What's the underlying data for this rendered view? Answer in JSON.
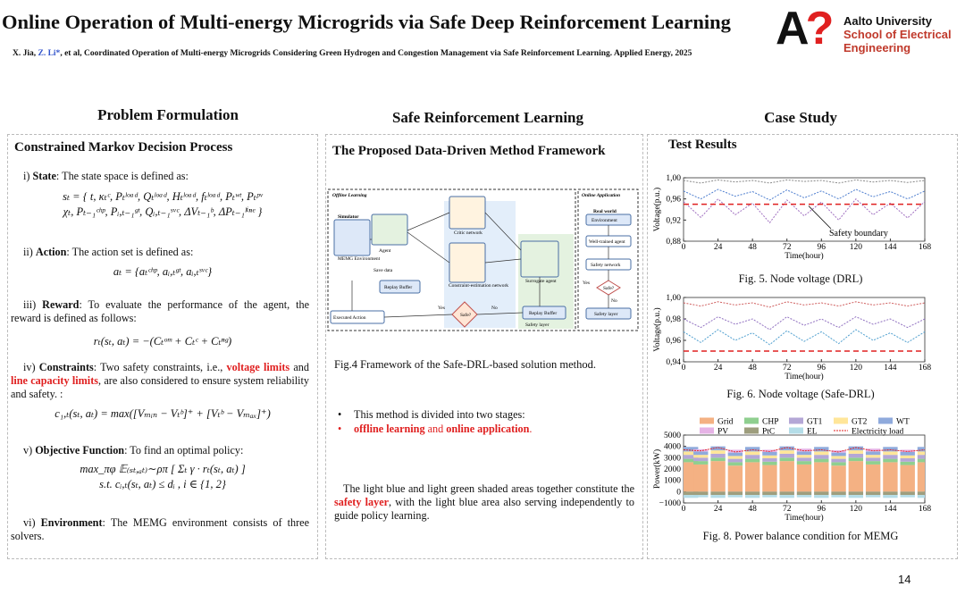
{
  "header": {
    "title": "Online Operation of Multi-energy Microgrids via Safe Deep Reinforcement Learning",
    "authors": [
      {
        "text": "X. Jia, "
      },
      {
        "text": "Z. Li*",
        "color": "#3355cc"
      },
      {
        "text": ", et al, Coordinated Operation of Multi-energy Microgrids Considering Green Hydrogen and Congestion Management via Safe Reinforcement Learning. Applied Energy, 2025"
      }
    ],
    "logo": [
      "A",
      "?"
    ],
    "university": [
      "Aalto University",
      "School of Electrical",
      "Engineering"
    ]
  },
  "left": {
    "heading": "Problem Formulation",
    "subheading": "Constrained Markov Decision Process",
    "items": [
      {
        "segments": [
          {
            "text": "i) "
          },
          {
            "text": "State",
            "bold": true
          },
          {
            "text": ": The state space is defined as:"
          }
        ],
        "formula": [
          "sₜ = { t, κₜᶜ, Pₜˡᵒᵃᵈ, Qₜˡᵒᵃᵈ, Hₜˡᵒᵃᵈ, fₜˡᵒᵃᵈ, Pₜʷᵗ, Pₜᵖᵛ",
          "χₜ, Pₜ₋₁ᶜʰᵖ, Pᵢ,ₜ₋₁ᵍᵗ, Qᵢ,ₜ₋₁ˢᵛᶜ, ΔVₜ₋₁ᵇ, ΔPₜ₋₁ˡⁱⁿᵉ }"
        ]
      },
      {
        "segments": [
          {
            "text": "ii) "
          },
          {
            "text": "Action",
            "bold": true
          },
          {
            "text": ": The action set is defined as:"
          }
        ],
        "formula": [
          "aₜ = {aₜᶜʰᵖ, aᵢ,ₜᵍᵗ, aᵢ,ₜˢᵛᶜ}"
        ]
      },
      {
        "segments": [
          {
            "text": "iii) "
          },
          {
            "text": "Reward",
            "bold": true
          },
          {
            "text": ": To evaluate the performance of the agent, the reward is defined as follows:"
          }
        ],
        "formula": [
          "rₜ(sₜ, aₜ) = −(Cₜᵒᵐ + Cₜᶜ + Cₜⁿᵍ)"
        ]
      },
      {
        "segments": [
          {
            "text": "iv) "
          },
          {
            "text": "Constraints",
            "bold": true
          },
          {
            "text": ": Two safety constraints, i.e., "
          },
          {
            "text": "voltage limits",
            "bold": true,
            "color": "#e02020"
          },
          {
            "text": " and "
          },
          {
            "text": "line capacity limits",
            "bold": true,
            "color": "#e02020"
          },
          {
            "text": ", are also considered to ensure system reliability and safety. :"
          }
        ],
        "formula": [
          "c₁,ₜ(sₜ, aₜ) = max([Vₘᵢₙ − Vₜᵇ]⁺ + [Vₜᵇ − Vₘₐₓ]⁺)"
        ]
      },
      {
        "segments": [
          {
            "text": "v) "
          },
          {
            "text": "Objective Function",
            "bold": true
          },
          {
            "text": ": To find an optimal policy:"
          }
        ],
        "formula": [
          "max_πφ  𝔼₍ₛₜ,ₐₜ₎∼ρπ [ Σₜ γ · rₜ(sₜ, aₜ) ]",
          "s.t.  cᵢ,ₜ(sₜ, aₜ) ≤ dᵢ ,   i ∈ {1, 2}"
        ]
      },
      {
        "segments": [
          {
            "text": "vi) "
          },
          {
            "text": "Environment",
            "bold": true
          },
          {
            "text": ": The MEMG environment consists of three solvers."
          }
        ]
      }
    ]
  },
  "middle": {
    "heading": "Safe Reinforcement Learning",
    "subheading": "The Proposed Data-Driven Method Framework",
    "diagram": {
      "labels": [
        "Offline Learning",
        "Online Application",
        "Simulator",
        "MEMG Environment",
        "Agent",
        "Critic network",
        "Constraint-estimation network",
        "Surrogate agent",
        "Replay Buffer",
        "Save data",
        "Executed Action",
        "Safe?",
        "Yes",
        "No",
        "Replay Buffer",
        "Safety layer",
        "Real world",
        "Environment",
        "Well-trained agent",
        "Safety network",
        "Safe?",
        "Yes",
        "No",
        "Safety layer"
      ]
    },
    "caption": "Fig.4 Framework of the Safe-DRL-based solution method.",
    "bullets": [
      [
        {
          "text": "This method is divided into two stages:"
        }
      ],
      [
        {
          "text": "offline learning",
          "bold": true,
          "color": "#e02020"
        },
        {
          "text": " and ",
          "color": "#e02020"
        },
        {
          "text": "online application",
          "bold": true,
          "color": "#e02020"
        },
        {
          "text": ".",
          "color": "#e02020"
        }
      ]
    ],
    "paragraph": [
      {
        "text": "The light blue and light green shaded areas together constitute the "
      },
      {
        "text": "safety layer",
        "bold": true,
        "color": "#e02020"
      },
      {
        "text": ", with the light blue area also serving independently to guide policy learning."
      }
    ]
  },
  "right": {
    "heading": "Case Study",
    "subheading": "Test Results",
    "captions": [
      "Fig. 5. Node voltage (DRL)",
      "Fig. 6. Node voltage (Safe-DRL)",
      "Fig. 8.  Power balance condition for MEMG"
    ]
  },
  "chart_data": [
    {
      "type": "line",
      "xlabel": "Time(hour)",
      "ylabel": "Voltage(p.u.)",
      "annotation": "Safety boundary",
      "x": [
        0,
        12,
        24,
        36,
        48,
        60,
        72,
        84,
        96,
        108,
        120,
        132,
        144,
        156,
        168
      ],
      "series": [
        {
          "color": "#8a8a8a",
          "values": [
            0.995,
            0.99,
            0.996,
            0.992,
            0.995,
            0.99,
            0.996,
            0.993,
            0.995,
            0.99,
            0.996,
            0.992,
            0.995,
            0.991,
            0.995
          ]
        },
        {
          "color": "#4f7fcf",
          "values": [
            0.975,
            0.96,
            0.978,
            0.965,
            0.974,
            0.958,
            0.977,
            0.962,
            0.975,
            0.96,
            0.978,
            0.964,
            0.974,
            0.96,
            0.975
          ]
        },
        {
          "color": "#a070c0",
          "values": [
            0.955,
            0.925,
            0.96,
            0.93,
            0.952,
            0.915,
            0.958,
            0.928,
            0.954,
            0.92,
            0.96,
            0.93,
            0.952,
            0.924,
            0.955
          ]
        }
      ],
      "boundary": 0.95,
      "boundary_color": "#e02020",
      "xlim": [
        0,
        168
      ],
      "xticks": [
        0,
        24,
        48,
        72,
        96,
        120,
        144,
        168
      ],
      "ylim": [
        0.88,
        1.0
      ],
      "yticks": [
        {
          "value": 0.88,
          "label": "0,88"
        },
        {
          "value": 0.92,
          "label": "0,92"
        },
        {
          "value": 0.96,
          "label": "0,96"
        },
        {
          "value": 1.0,
          "label": "1,00"
        }
      ]
    },
    {
      "type": "line",
      "xlabel": "Time(hour)",
      "ylabel": "Voltage(p.u.)",
      "x": [
        0,
        12,
        24,
        36,
        48,
        60,
        72,
        84,
        96,
        108,
        120,
        132,
        144,
        156,
        168
      ],
      "series": [
        {
          "color": "#d06060",
          "values": [
            0.995,
            0.992,
            0.996,
            0.993,
            0.995,
            0.991,
            0.996,
            0.993,
            0.995,
            0.992,
            0.996,
            0.993,
            0.995,
            0.992,
            0.995
          ]
        },
        {
          "color": "#9070c0",
          "values": [
            0.98,
            0.972,
            0.982,
            0.975,
            0.98,
            0.97,
            0.982,
            0.974,
            0.98,
            0.972,
            0.982,
            0.975,
            0.98,
            0.972,
            0.98
          ]
        },
        {
          "color": "#4f9fcf",
          "values": [
            0.968,
            0.958,
            0.97,
            0.96,
            0.967,
            0.956,
            0.969,
            0.959,
            0.968,
            0.957,
            0.97,
            0.96,
            0.967,
            0.958,
            0.968
          ]
        }
      ],
      "boundary": 0.95,
      "boundary_color": "#e02020",
      "xlim": [
        0,
        168
      ],
      "xticks": [
        0,
        24,
        48,
        72,
        96,
        120,
        144,
        168
      ],
      "ylim": [
        0.94,
        1.0
      ],
      "yticks": [
        {
          "value": 0.94,
          "label": "0,94"
        },
        {
          "value": 0.96,
          "label": "0,96"
        },
        {
          "value": 0.98,
          "label": "0,98"
        },
        {
          "value": 1.0,
          "label": "1,00"
        }
      ]
    },
    {
      "type": "bar",
      "xlabel": "Time(hour)",
      "ylabel": "Power(kW)",
      "x": [
        0,
        12,
        24,
        36,
        48,
        60,
        72,
        84,
        96,
        108,
        120,
        132,
        144,
        156,
        168
      ],
      "series": [
        {
          "name": "Grid",
          "color": "#f4b183",
          "values": [
            2600,
            2400,
            2700,
            2300,
            2600,
            2350,
            2700,
            2400,
            2600,
            2300,
            2700,
            2400,
            2600,
            2350,
            2600
          ]
        },
        {
          "name": "CHP",
          "color": "#8fcf8f",
          "values": [
            300,
            300,
            300,
            300,
            300,
            300,
            300,
            300,
            300,
            300,
            300,
            300,
            300,
            300,
            300
          ]
        },
        {
          "name": "GT1",
          "color": "#b4a7d6",
          "values": [
            350,
            300,
            350,
            300,
            350,
            300,
            350,
            300,
            350,
            300,
            350,
            300,
            350,
            300,
            350
          ]
        },
        {
          "name": "GT2",
          "color": "#ffe699",
          "values": [
            300,
            250,
            300,
            250,
            300,
            250,
            300,
            250,
            300,
            250,
            300,
            250,
            300,
            250,
            300
          ]
        },
        {
          "name": "WT",
          "color": "#8faadc",
          "values": [
            400,
            300,
            350,
            300,
            400,
            300,
            350,
            300,
            400,
            300,
            350,
            300,
            400,
            300,
            400
          ]
        },
        {
          "name": "PV",
          "color": "#e6b3e6",
          "values": [
            0,
            200,
            0,
            250,
            0,
            200,
            0,
            250,
            0,
            200,
            0,
            250,
            0,
            200,
            0
          ]
        },
        {
          "name": "PtC",
          "color": "#9e9e7e",
          "values": [
            -300,
            -300,
            -300,
            -300,
            -300,
            -300,
            -300,
            -300,
            -300,
            -300,
            -300,
            -300,
            -300,
            -300,
            -300
          ]
        },
        {
          "name": "EL",
          "color": "#b4dde8",
          "values": [
            -250,
            -200,
            -250,
            -200,
            -250,
            -200,
            -250,
            -200,
            -250,
            -200,
            -250,
            -200,
            -250,
            -200,
            -250
          ]
        }
      ],
      "line_series": {
        "name": "Electricity load",
        "color": "#e02020",
        "values": [
          3700,
          3600,
          3900,
          3500,
          3700,
          3550,
          3900,
          3600,
          3700,
          3500,
          3900,
          3600,
          3700,
          3550,
          3700
        ]
      },
      "xlim": [
        0,
        168
      ],
      "xticks": [
        0,
        24,
        48,
        72,
        96,
        120,
        144,
        168
      ],
      "ylim": [
        -1000,
        5000
      ],
      "yticks": [
        {
          "value": -1000,
          "label": "−1000"
        },
        0,
        1000,
        2000,
        3000,
        4000,
        5000
      ]
    }
  ],
  "page_number": "14"
}
